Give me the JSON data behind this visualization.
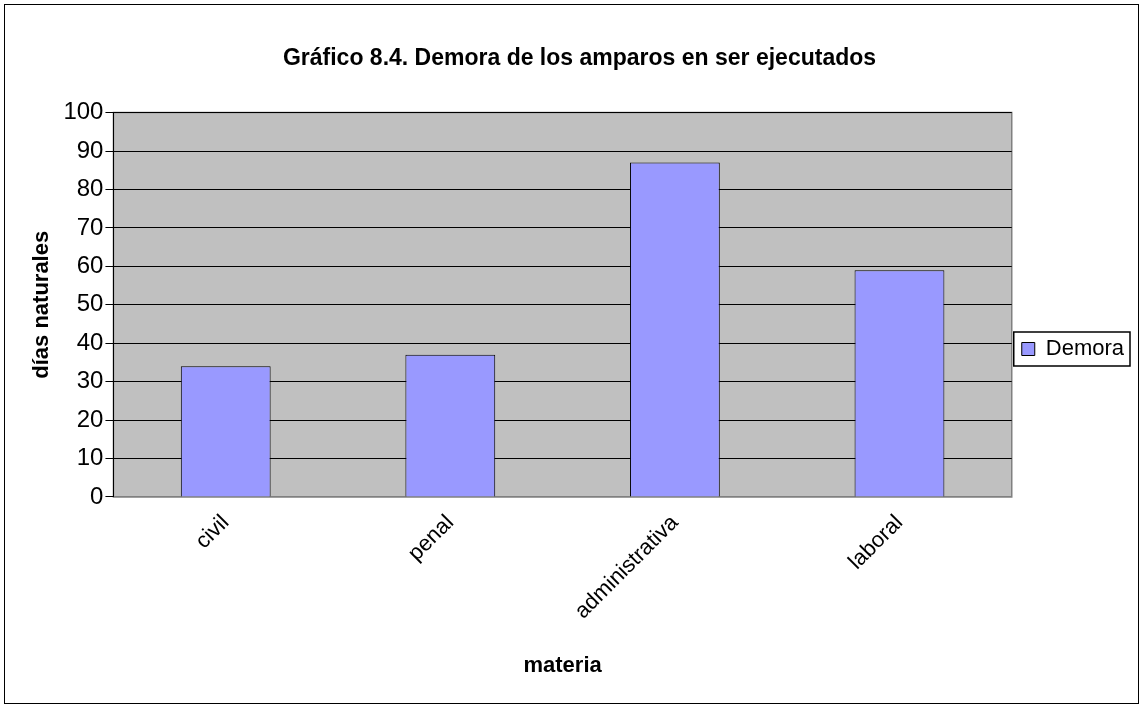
{
  "chart_data": {
    "type": "bar",
    "title": "Gráfico 8.4. Demora de los amparos en ser ejecutados",
    "xlabel": "materia",
    "ylabel": "días naturales",
    "categories": [
      "civil",
      "penal",
      "administrativa",
      "laboral"
    ],
    "series": [
      {
        "name": "Demora",
        "color": "#9999ff",
        "values": [
          34,
          37,
          87,
          59
        ]
      }
    ],
    "ylim": [
      0,
      100
    ],
    "yticks": [
      0,
      10,
      20,
      30,
      40,
      50,
      60,
      70,
      80,
      90,
      100
    ],
    "grid": "y",
    "legend": "right"
  }
}
